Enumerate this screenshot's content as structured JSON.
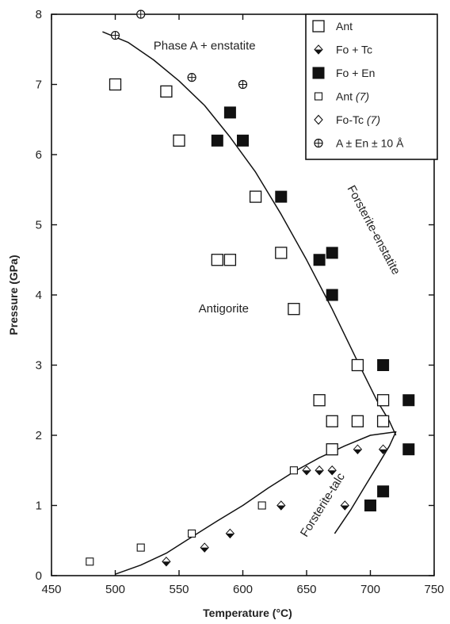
{
  "chart_data": {
    "type": "scatter",
    "xlabel": "Temperature (°C)",
    "ylabel": "Pressure (GPa)",
    "xlim": [
      450,
      750
    ],
    "ylim": [
      0,
      8
    ],
    "xticks": [
      450,
      500,
      550,
      600,
      650,
      700,
      750
    ],
    "yticks": [
      0,
      1,
      2,
      3,
      4,
      5,
      6,
      7,
      8
    ],
    "legend_position": "top-right",
    "series": [
      {
        "name": "Ant",
        "marker": "open-square-large",
        "points": [
          [
            500,
            7.0
          ],
          [
            540,
            6.9
          ],
          [
            550,
            6.2
          ],
          [
            610,
            5.4
          ],
          [
            580,
            4.5
          ],
          [
            590,
            4.5
          ],
          [
            630,
            4.6
          ],
          [
            640,
            3.8
          ],
          [
            690,
            3.0
          ],
          [
            660,
            2.5
          ],
          [
            710,
            2.5
          ],
          [
            670,
            2.2
          ],
          [
            690,
            2.2
          ],
          [
            710,
            2.2
          ],
          [
            670,
            1.8
          ]
        ]
      },
      {
        "name": "Fo + Tc",
        "marker": "half-diamond",
        "points": [
          [
            540,
            0.2
          ],
          [
            570,
            0.4
          ],
          [
            590,
            0.6
          ],
          [
            630,
            1.0
          ],
          [
            650,
            1.5
          ],
          [
            660,
            1.5
          ],
          [
            670,
            1.5
          ],
          [
            680,
            1.0
          ],
          [
            690,
            1.8
          ],
          [
            710,
            1.8
          ]
        ]
      },
      {
        "name": "Fo + En",
        "marker": "filled-square",
        "points": [
          [
            590,
            6.6
          ],
          [
            580,
            6.2
          ],
          [
            600,
            6.2
          ],
          [
            630,
            5.4
          ],
          [
            660,
            4.5
          ],
          [
            670,
            4.6
          ],
          [
            670,
            4.0
          ],
          [
            710,
            3.0
          ],
          [
            730,
            2.5
          ],
          [
            730,
            1.8
          ],
          [
            710,
            1.2
          ],
          [
            700,
            1.0
          ]
        ]
      },
      {
        "name": "Ant",
        "name_suffix": "(7)",
        "marker": "open-square-small",
        "points": [
          [
            480,
            0.2
          ],
          [
            520,
            0.4
          ],
          [
            560,
            0.6
          ],
          [
            615,
            1.0
          ],
          [
            640,
            1.5
          ]
        ]
      },
      {
        "name": "Fo-Tc",
        "name_suffix": "(7)",
        "marker": "open-diamond",
        "points": []
      },
      {
        "name": "A ± En ± 10 Å",
        "marker": "circle-plus",
        "points": [
          [
            500,
            7.7
          ],
          [
            520,
            8.0
          ],
          [
            560,
            7.1
          ],
          [
            600,
            7.0
          ]
        ]
      }
    ],
    "curves": [
      {
        "label": "Forsterite-enstatite",
        "points": [
          [
            490,
            7.75
          ],
          [
            510,
            7.6
          ],
          [
            530,
            7.35
          ],
          [
            550,
            7.05
          ],
          [
            570,
            6.7
          ],
          [
            590,
            6.25
          ],
          [
            610,
            5.75
          ],
          [
            630,
            5.15
          ],
          [
            650,
            4.5
          ],
          [
            670,
            3.8
          ],
          [
            690,
            3.05
          ],
          [
            705,
            2.5
          ],
          [
            715,
            2.2
          ],
          [
            720,
            2.0
          ]
        ]
      },
      {
        "label": "Forsterite-talc",
        "points": [
          [
            500,
            0.02
          ],
          [
            520,
            0.15
          ],
          [
            540,
            0.32
          ],
          [
            560,
            0.55
          ],
          [
            580,
            0.78
          ],
          [
            600,
            1.0
          ],
          [
            620,
            1.25
          ],
          [
            640,
            1.48
          ],
          [
            660,
            1.68
          ],
          [
            680,
            1.85
          ],
          [
            700,
            2.0
          ],
          [
            720,
            2.05
          ],
          [
            715,
            1.85
          ],
          [
            705,
            1.55
          ],
          [
            695,
            1.25
          ],
          [
            685,
            0.95
          ],
          [
            672,
            0.6
          ]
        ]
      }
    ],
    "annotations": [
      {
        "text": "Phase A + enstatite",
        "x": 570,
        "y": 7.5
      },
      {
        "text": "Antigorite",
        "x": 585,
        "y": 3.75
      },
      {
        "text": "Forsterite-enstatite",
        "x": 700,
        "y": 4.9,
        "rotate": 62
      },
      {
        "text": "Forsterite-talc",
        "x": 665,
        "y": 0.98,
        "rotate": -58
      }
    ]
  }
}
